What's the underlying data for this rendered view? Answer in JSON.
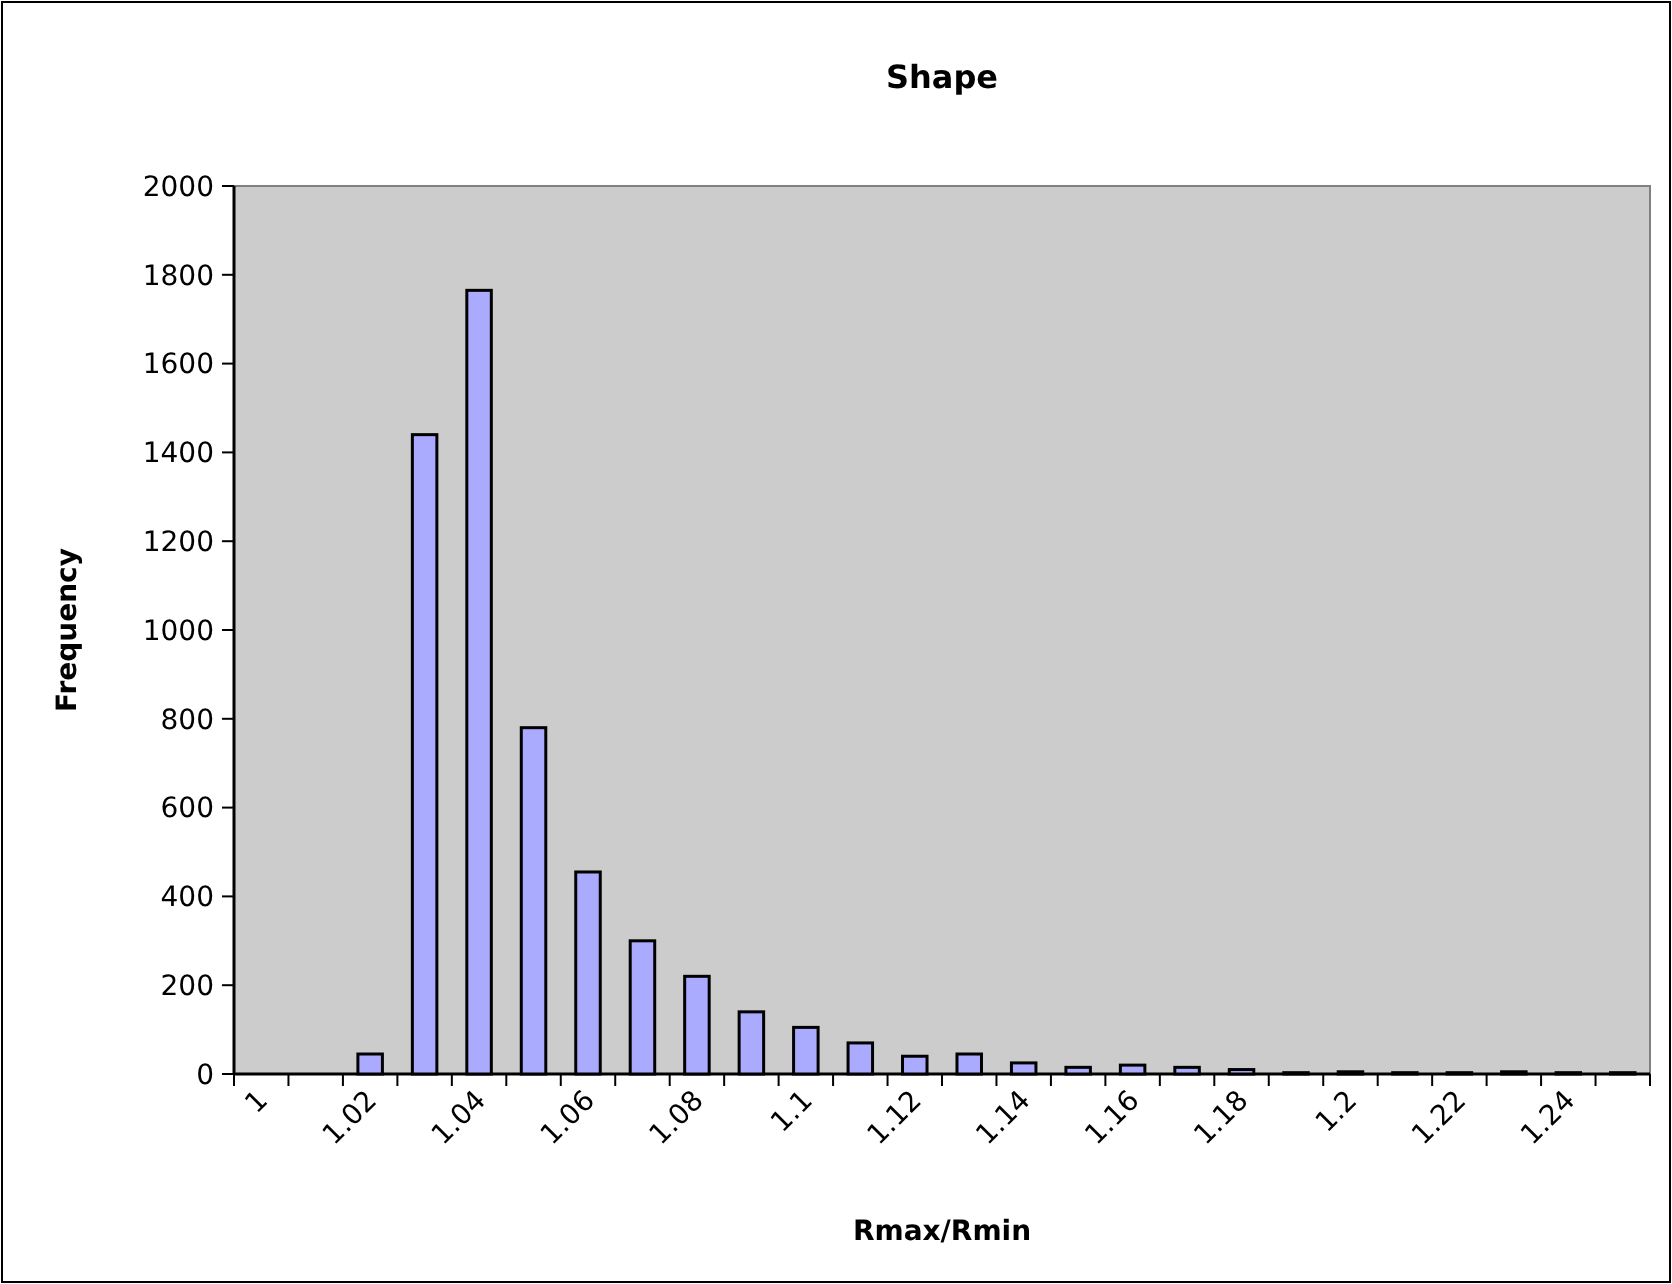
{
  "chart_data": {
    "type": "bar",
    "title": "Shape",
    "xlabel": "Rmax/Rmin",
    "ylabel": "Frequency",
    "categories": [
      "1",
      null,
      "1.02",
      null,
      "1.04",
      null,
      "1.06",
      null,
      "1.08",
      null,
      "1.1",
      null,
      "1.12",
      null,
      "1.14",
      null,
      "1.16",
      null,
      "1.18",
      null,
      "1.2",
      null,
      "1.22",
      null,
      "1.24",
      null
    ],
    "values": [
      0,
      0,
      45,
      1440,
      1765,
      780,
      455,
      300,
      220,
      140,
      105,
      70,
      40,
      45,
      25,
      15,
      20,
      15,
      10,
      3,
      5,
      3,
      3,
      5,
      3,
      3
    ],
    "color": "#aaaaff",
    "ylim": [
      0,
      2000
    ],
    "yticks": [
      0,
      200,
      400,
      600,
      800,
      1000,
      1200,
      1400,
      1600,
      1800,
      2000
    ],
    "grid": false
  }
}
